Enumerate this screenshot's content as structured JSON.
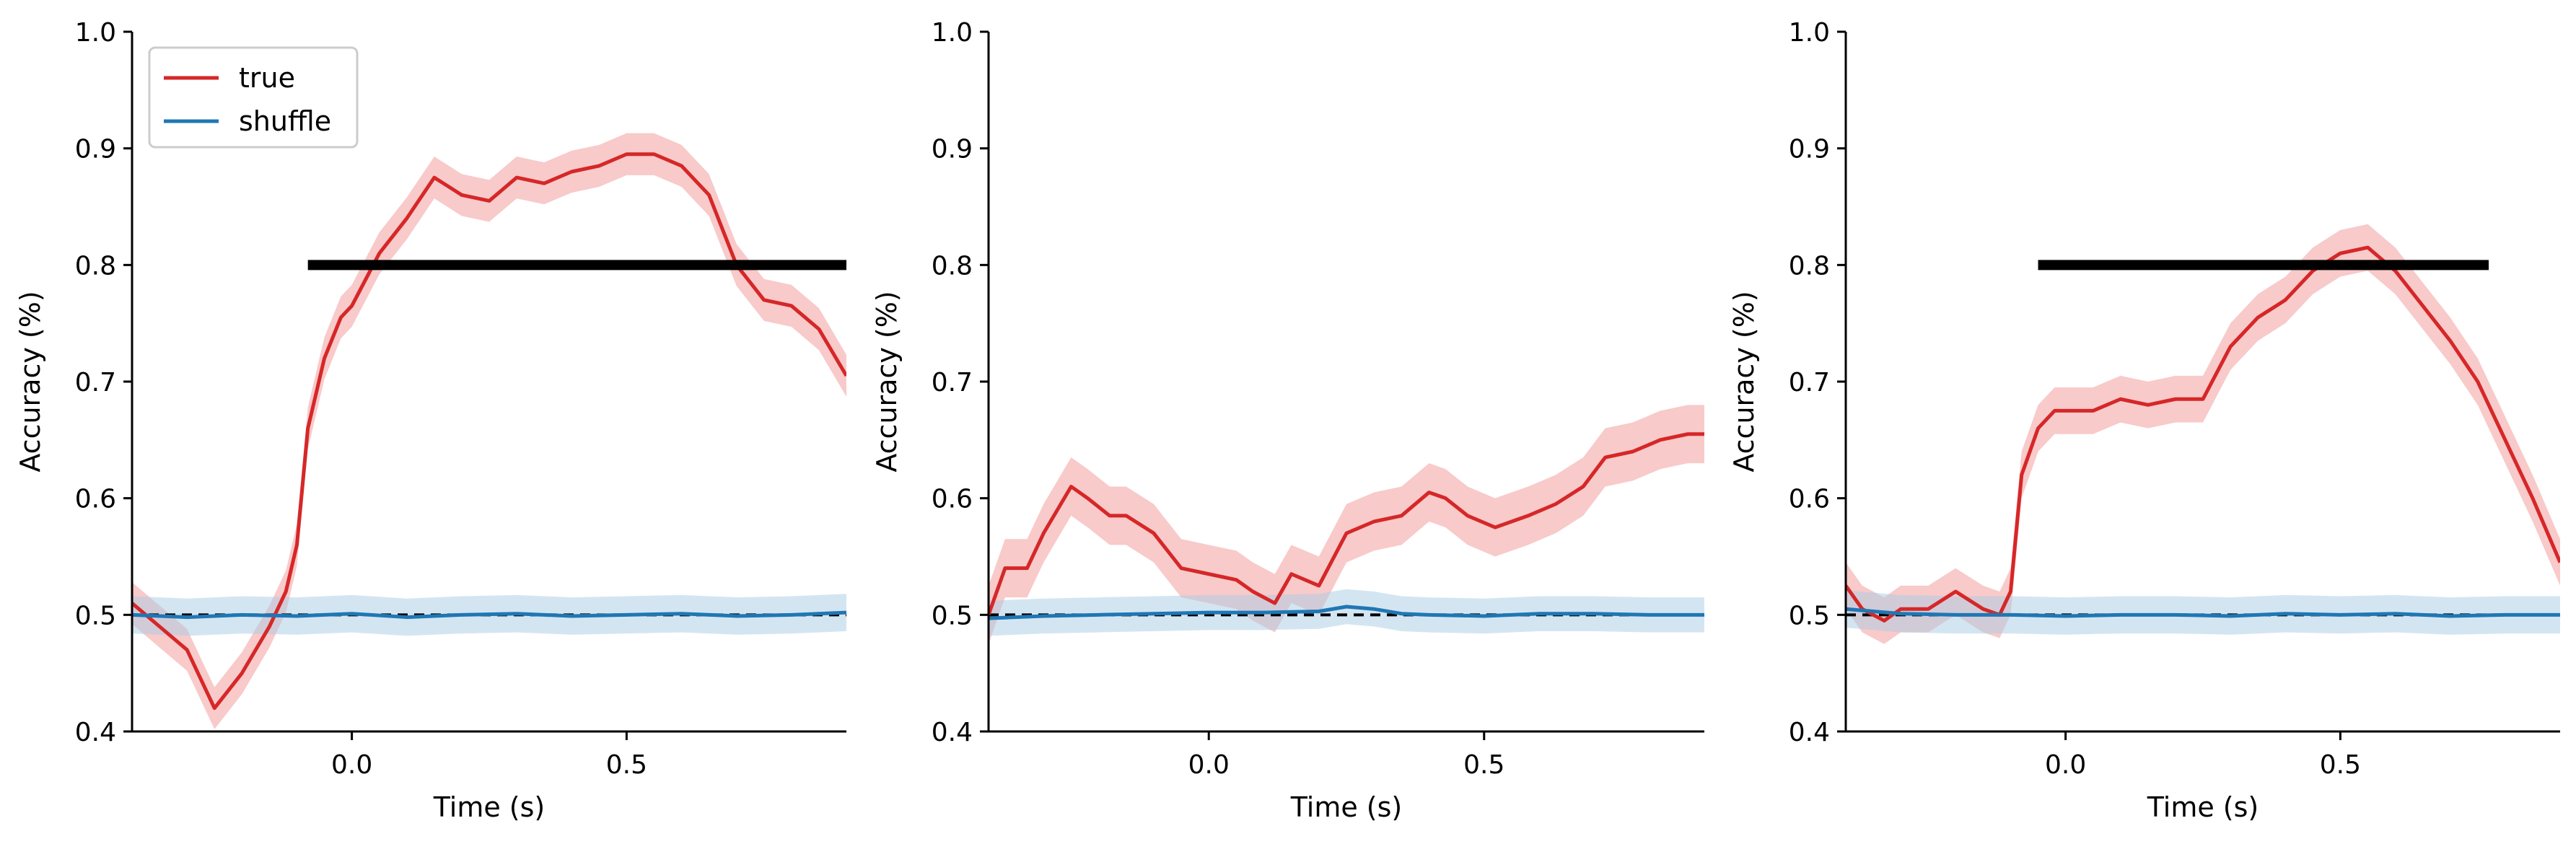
{
  "colors": {
    "true": "#d62728",
    "true_band": "#f4a6a6",
    "shuffle": "#1f77b4",
    "shuffle_band": "#a9cbe6",
    "chance": "#000000",
    "sig_bar": "#000000"
  },
  "chart_data": [
    {
      "type": "line",
      "xlabel": "Time (s)",
      "ylabel": "Accuracy (%)",
      "xlim": [
        -0.4,
        0.9
      ],
      "ylim": [
        0.4,
        1.0
      ],
      "xticks": [
        {
          "v": 0.0,
          "label": "0.0"
        },
        {
          "v": 0.5,
          "label": "0.5"
        }
      ],
      "yticks": [
        {
          "v": 0.4,
          "label": "0.4"
        },
        {
          "v": 0.5,
          "label": "0.5"
        },
        {
          "v": 0.6,
          "label": "0.6"
        },
        {
          "v": 0.7,
          "label": "0.7"
        },
        {
          "v": 0.8,
          "label": "0.8"
        },
        {
          "v": 0.9,
          "label": "0.9"
        },
        {
          "v": 1.0,
          "label": "1.0"
        }
      ],
      "legend": {
        "placement": "top-left",
        "entries": [
          "true",
          "shuffle"
        ]
      },
      "chance_level": 0.5,
      "significance_bar": {
        "y": 0.8,
        "x_start": -0.08,
        "x_end": 0.9
      },
      "series": [
        {
          "name": "true",
          "band": 0.018,
          "x": [
            -0.4,
            -0.35,
            -0.3,
            -0.27,
            -0.25,
            -0.2,
            -0.15,
            -0.12,
            -0.1,
            -0.08,
            -0.05,
            -0.02,
            0.0,
            0.05,
            0.1,
            0.15,
            0.2,
            0.25,
            0.3,
            0.35,
            0.4,
            0.45,
            0.5,
            0.55,
            0.6,
            0.65,
            0.7,
            0.75,
            0.8,
            0.85,
            0.9
          ],
          "y": [
            0.51,
            0.49,
            0.47,
            0.44,
            0.42,
            0.45,
            0.49,
            0.52,
            0.56,
            0.66,
            0.72,
            0.755,
            0.765,
            0.81,
            0.84,
            0.875,
            0.86,
            0.855,
            0.875,
            0.87,
            0.88,
            0.885,
            0.895,
            0.895,
            0.885,
            0.86,
            0.8,
            0.77,
            0.765,
            0.745,
            0.705
          ]
        },
        {
          "name": "shuffle",
          "band": 0.016,
          "x": [
            -0.4,
            -0.3,
            -0.2,
            -0.1,
            0.0,
            0.1,
            0.2,
            0.3,
            0.4,
            0.5,
            0.6,
            0.7,
            0.8,
            0.9
          ],
          "y": [
            0.5,
            0.498,
            0.5,
            0.499,
            0.501,
            0.498,
            0.5,
            0.501,
            0.499,
            0.5,
            0.501,
            0.499,
            0.5,
            0.502
          ]
        }
      ]
    },
    {
      "type": "line",
      "xlabel": "Time (s)",
      "ylabel": "Accuracy (%)",
      "xlim": [
        -0.4,
        0.9
      ],
      "ylim": [
        0.4,
        1.0
      ],
      "xticks": [
        {
          "v": 0.0,
          "label": "0.0"
        },
        {
          "v": 0.5,
          "label": "0.5"
        }
      ],
      "yticks": [
        {
          "v": 0.4,
          "label": "0.4"
        },
        {
          "v": 0.5,
          "label": "0.5"
        },
        {
          "v": 0.6,
          "label": "0.6"
        },
        {
          "v": 0.7,
          "label": "0.7"
        },
        {
          "v": 0.8,
          "label": "0.8"
        },
        {
          "v": 0.9,
          "label": "0.9"
        },
        {
          "v": 1.0,
          "label": "1.0"
        }
      ],
      "chance_level": 0.5,
      "series": [
        {
          "name": "true",
          "band": 0.025,
          "x": [
            -0.4,
            -0.37,
            -0.33,
            -0.3,
            -0.25,
            -0.22,
            -0.18,
            -0.15,
            -0.1,
            -0.05,
            0.0,
            0.05,
            0.08,
            0.12,
            0.15,
            0.2,
            0.25,
            0.3,
            0.35,
            0.4,
            0.43,
            0.47,
            0.52,
            0.58,
            0.63,
            0.68,
            0.72,
            0.77,
            0.82,
            0.87,
            0.9
          ],
          "y": [
            0.5,
            0.54,
            0.54,
            0.57,
            0.61,
            0.6,
            0.585,
            0.585,
            0.57,
            0.54,
            0.535,
            0.53,
            0.52,
            0.51,
            0.535,
            0.525,
            0.57,
            0.58,
            0.585,
            0.605,
            0.6,
            0.585,
            0.575,
            0.585,
            0.595,
            0.61,
            0.635,
            0.64,
            0.65,
            0.655,
            0.655
          ]
        },
        {
          "name": "shuffle",
          "band": 0.015,
          "x": [
            -0.4,
            -0.3,
            -0.2,
            -0.1,
            0.0,
            0.1,
            0.2,
            0.25,
            0.3,
            0.35,
            0.4,
            0.5,
            0.6,
            0.7,
            0.8,
            0.9
          ],
          "y": [
            0.497,
            0.499,
            0.5,
            0.501,
            0.502,
            0.502,
            0.503,
            0.507,
            0.505,
            0.501,
            0.5,
            0.499,
            0.501,
            0.501,
            0.5,
            0.5
          ]
        }
      ]
    },
    {
      "type": "line",
      "xlabel": "Time (s)",
      "ylabel": "Accuracy (%)",
      "xlim": [
        -0.4,
        0.9
      ],
      "ylim": [
        0.4,
        1.0
      ],
      "xticks": [
        {
          "v": 0.0,
          "label": "0.0"
        },
        {
          "v": 0.5,
          "label": "0.5"
        }
      ],
      "yticks": [
        {
          "v": 0.4,
          "label": "0.4"
        },
        {
          "v": 0.5,
          "label": "0.5"
        },
        {
          "v": 0.6,
          "label": "0.6"
        },
        {
          "v": 0.7,
          "label": "0.7"
        },
        {
          "v": 0.8,
          "label": "0.8"
        },
        {
          "v": 0.9,
          "label": "0.9"
        },
        {
          "v": 1.0,
          "label": "1.0"
        }
      ],
      "chance_level": 0.5,
      "significance_bar": {
        "y": 0.8,
        "x_start": -0.05,
        "x_end": 0.77
      },
      "series": [
        {
          "name": "true",
          "band": 0.02,
          "x": [
            -0.4,
            -0.37,
            -0.33,
            -0.3,
            -0.25,
            -0.2,
            -0.15,
            -0.12,
            -0.1,
            -0.08,
            -0.05,
            -0.02,
            0.0,
            0.05,
            0.1,
            0.15,
            0.2,
            0.25,
            0.3,
            0.35,
            0.4,
            0.45,
            0.5,
            0.55,
            0.6,
            0.65,
            0.7,
            0.75,
            0.8,
            0.85,
            0.9
          ],
          "y": [
            0.525,
            0.505,
            0.495,
            0.505,
            0.505,
            0.52,
            0.505,
            0.5,
            0.52,
            0.62,
            0.66,
            0.675,
            0.675,
            0.675,
            0.685,
            0.68,
            0.685,
            0.685,
            0.73,
            0.755,
            0.77,
            0.795,
            0.81,
            0.815,
            0.795,
            0.765,
            0.735,
            0.7,
            0.65,
            0.6,
            0.545
          ]
        },
        {
          "name": "shuffle",
          "band": 0.016,
          "x": [
            -0.4,
            -0.3,
            -0.2,
            -0.1,
            0.0,
            0.1,
            0.2,
            0.3,
            0.4,
            0.5,
            0.6,
            0.7,
            0.8,
            0.9
          ],
          "y": [
            0.505,
            0.501,
            0.5,
            0.5,
            0.499,
            0.5,
            0.5,
            0.499,
            0.501,
            0.5,
            0.501,
            0.499,
            0.5,
            0.5
          ]
        }
      ]
    }
  ]
}
